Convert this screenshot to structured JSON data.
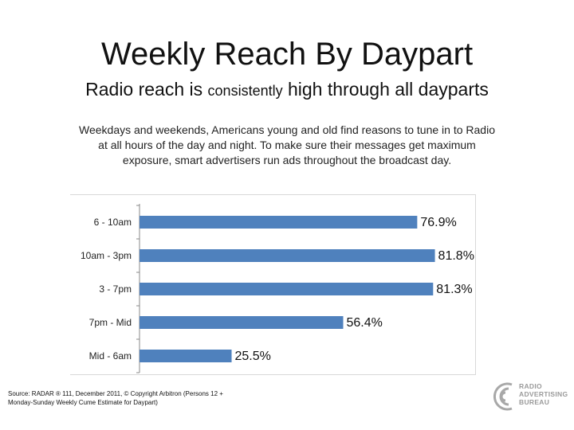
{
  "header": {
    "title": "Weekly Reach By Daypart",
    "subtitle_part1": "Radio reach is ",
    "subtitle_part2": "consistently",
    "subtitle_part3": " high through all dayparts"
  },
  "description": "Weekdays and weekends, Americans young and old find reasons to tune in to Radio at all hours of the day and night. To make sure their messages get maximum exposure, smart advertisers run ads  throughout the broadcast day.",
  "chart_data": {
    "type": "bar",
    "orientation": "horizontal",
    "categories": [
      "6 - 10am",
      "10am - 3pm",
      "3 - 7pm",
      "7pm - Mid",
      "Mid - 6am"
    ],
    "values": [
      76.9,
      81.8,
      81.3,
      56.4,
      25.5
    ],
    "value_labels": [
      "76.9%",
      "81.8%",
      "81.3%",
      "56.4%",
      "25.5%"
    ],
    "title": "",
    "xlabel": "",
    "ylabel": "",
    "xlim": [
      0,
      100
    ],
    "bar_color": "#4f81bd",
    "grid": false,
    "legend": "none"
  },
  "source": "Source:  RADAR ® 111, December 2011, © Copyright Arbitron (Persons 12 + Monday-Sunday Weekly Cume Estimate for Daypart)",
  "logo": {
    "lines": [
      "RADIO",
      "ADVERTISING",
      "BUREAU"
    ],
    "color": "#9a9a9a"
  }
}
